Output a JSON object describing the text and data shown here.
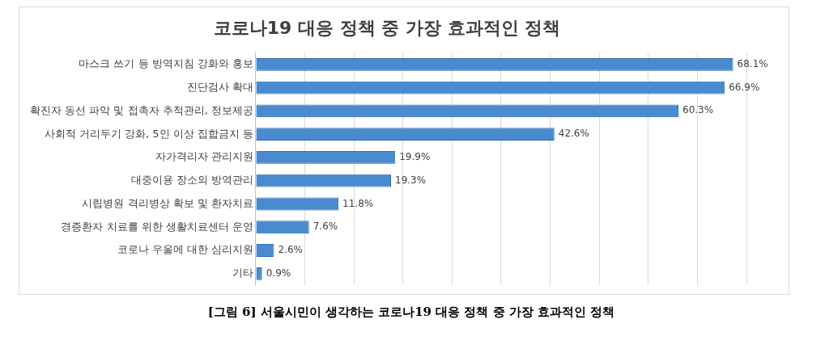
{
  "chart_data": {
    "type": "bar",
    "orientation": "horizontal",
    "title": "코로나19 대응 정책 중 가장 효과적인 정책",
    "categories": [
      "마스크 쓰기 등 방역지침 강화와 홍보",
      "진단검사 확대",
      "확진자 동선 파악 및 접촉자 추적관리, 정보제공",
      "사회적 거리두기 강화, 5인 이상 집합금지 등",
      "자가격리자 관리지원",
      "대중이용 장소의 방역관리",
      "시립병원 격리병상 확보 및 환자치료",
      "경증환자 치료를 위한 생활치료센터 운영",
      "코로나 우울에 대한 심리지원",
      "기타"
    ],
    "values": [
      68.1,
      66.9,
      60.3,
      42.6,
      19.9,
      19.3,
      11.8,
      7.6,
      2.6,
      0.9
    ],
    "value_labels": [
      "68.1%",
      "66.9%",
      "60.3%",
      "42.6%",
      "19.9%",
      "19.3%",
      "11.8%",
      "7.6%",
      "2.6%",
      "0.9%"
    ],
    "color": "#4a8ad0",
    "xlim": [
      0,
      70
    ],
    "xticks": [
      {
        "value": 0,
        "label": null
      },
      {
        "value": 7,
        "label": null
      },
      {
        "value": 14,
        "label": null
      },
      {
        "value": 21,
        "label": null
      },
      {
        "value": 28,
        "label": null
      },
      {
        "value": 35,
        "label": null
      },
      {
        "value": 42,
        "label": null
      },
      {
        "value": 49,
        "label": null
      },
      {
        "value": 56,
        "label": null
      },
      {
        "value": 63,
        "label": null
      },
      {
        "value": 70,
        "label": null
      }
    ],
    "grid": "x",
    "tick_labels": "y",
    "legend": false,
    "annotations": [
      "[그림 6] 서울시민이 생각하는 코로나19 대응 정책 중 가장 효과적인 정책"
    ]
  }
}
